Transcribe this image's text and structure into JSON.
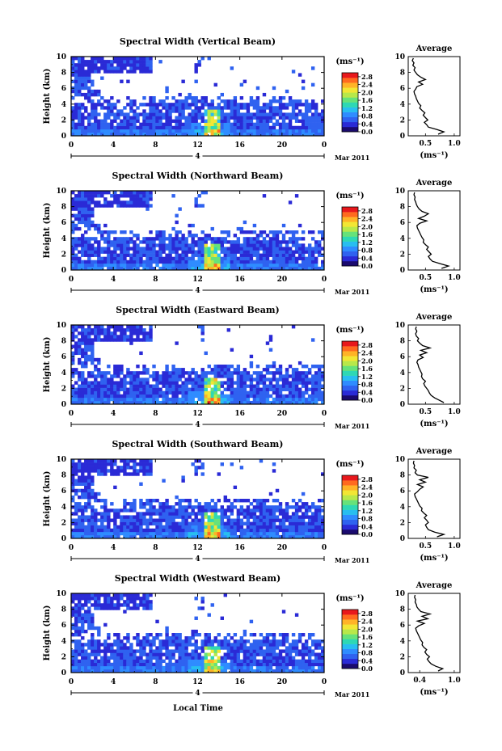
{
  "figure": {
    "date_label": "Mar 2011",
    "day_label": "4",
    "xlabel": "Local Time",
    "colorbar_unit": "(ms⁻¹)",
    "avg_title": "Average",
    "avg_unit": "(ms⁻¹)",
    "colormap": [
      "#1a0a6e",
      "#2a2ad6",
      "#2f62f0",
      "#2f8cff",
      "#28bef0",
      "#2ed8b4",
      "#66e27a",
      "#b8e84a",
      "#f2e634",
      "#ffb327",
      "#ff6a1f",
      "#e8181c"
    ]
  },
  "chart_data": [
    {
      "type": "heatmap",
      "title": "Spectral Width (Vertical Beam)",
      "ylabel": "Height (km)",
      "x_ticks": [
        "0",
        "4",
        "8",
        "12",
        "16",
        "20",
        "0"
      ],
      "xlim": [
        0,
        24
      ],
      "y_ticks": [
        "0",
        "2",
        "4",
        "6",
        "8",
        "10"
      ],
      "ylim": [
        0,
        10
      ],
      "colorbar_ticks": [
        "0.0",
        "0.4",
        "0.8",
        "1.2",
        "1.6",
        "2.0",
        "2.4",
        "2.8"
      ],
      "colorbar_range": [
        0,
        3.0
      ],
      "average_profile": {
        "title": "Average",
        "x_ticks": [
          "0.5",
          "1.0"
        ],
        "y_ticks": [
          "0",
          "2",
          "4",
          "6",
          "8",
          "10"
        ],
        "xlim": [
          0.2,
          1.1
        ],
        "ylim": [
          0,
          10
        ],
        "height": [
          0.2,
          0.5,
          0.8,
          1.1,
          1.4,
          1.7,
          2.0,
          2.3,
          2.6,
          2.9,
          3.2,
          3.5,
          3.8,
          4.1,
          4.4,
          4.7,
          5.0,
          5.3,
          5.6,
          5.9,
          6.2,
          6.5,
          6.8,
          7.1,
          7.4,
          7.7,
          8.0,
          8.3,
          8.6,
          8.9,
          9.2,
          9.5,
          9.8
        ],
        "width": [
          0.72,
          0.82,
          0.7,
          0.55,
          0.52,
          0.48,
          0.54,
          0.5,
          0.46,
          0.49,
          0.44,
          0.4,
          0.42,
          0.38,
          0.36,
          0.34,
          0.33,
          0.31,
          0.3,
          0.33,
          0.35,
          0.45,
          0.38,
          0.5,
          0.42,
          0.36,
          0.33,
          0.3,
          0.32,
          0.28,
          0.3,
          0.27,
          0.29
        ]
      }
    },
    {
      "type": "heatmap",
      "title": "Spectral Width (Northward Beam)",
      "ylabel": "Height (km)",
      "x_ticks": [
        "0",
        "4",
        "8",
        "12",
        "16",
        "20",
        "0"
      ],
      "xlim": [
        0,
        24
      ],
      "y_ticks": [
        "0",
        "2",
        "4",
        "6",
        "8",
        "10"
      ],
      "ylim": [
        0,
        10
      ],
      "colorbar_ticks": [
        "0.0",
        "0.4",
        "0.8",
        "1.2",
        "1.6",
        "2.0",
        "2.4",
        "2.8"
      ],
      "colorbar_range": [
        0,
        3.0
      ],
      "average_profile": {
        "title": "Average",
        "x_ticks": [
          "0.5",
          "1.0"
        ],
        "y_ticks": [
          "0",
          "2",
          "4",
          "6",
          "8",
          "10"
        ],
        "xlim": [
          0.2,
          1.1
        ],
        "ylim": [
          0,
          10
        ],
        "height": [
          0.2,
          0.5,
          0.8,
          1.1,
          1.4,
          1.7,
          2.0,
          2.3,
          2.6,
          2.9,
          3.2,
          3.5,
          3.8,
          4.1,
          4.4,
          4.7,
          5.0,
          5.3,
          5.6,
          5.9,
          6.2,
          6.5,
          6.8,
          7.1,
          7.4,
          7.7,
          8.0,
          8.3,
          8.6,
          8.9,
          9.2,
          9.5,
          9.8
        ],
        "width": [
          0.78,
          0.9,
          0.76,
          0.62,
          0.58,
          0.55,
          0.6,
          0.56,
          0.52,
          0.55,
          0.5,
          0.46,
          0.47,
          0.44,
          0.42,
          0.4,
          0.38,
          0.36,
          0.35,
          0.4,
          0.52,
          0.38,
          0.48,
          0.55,
          0.44,
          0.39,
          0.36,
          0.34,
          0.33,
          0.31,
          0.32,
          0.3,
          0.31
        ]
      }
    },
    {
      "type": "heatmap",
      "title": "Spectral Width (Eastward Beam)",
      "ylabel": "Height (km)",
      "x_ticks": [
        "0",
        "4",
        "8",
        "12",
        "16",
        "20",
        "0"
      ],
      "xlim": [
        0,
        24
      ],
      "y_ticks": [
        "0",
        "2",
        "4",
        "6",
        "8",
        "10"
      ],
      "ylim": [
        0,
        10
      ],
      "colorbar_ticks": [
        "0.0",
        "0.4",
        "0.8",
        "1.2",
        "1.6",
        "2.0",
        "2.4",
        "2.8"
      ],
      "colorbar_range": [
        0,
        3.0
      ],
      "average_profile": {
        "title": "Average",
        "x_ticks": [
          "0.5",
          "1.0"
        ],
        "y_ticks": [
          "0",
          "2",
          "4",
          "6",
          "8",
          "10"
        ],
        "xlim": [
          0.2,
          1.1
        ],
        "ylim": [
          0,
          10
        ],
        "height": [
          0.2,
          0.5,
          0.8,
          1.1,
          1.4,
          1.7,
          2.0,
          2.3,
          2.6,
          2.9,
          3.2,
          3.5,
          3.8,
          4.1,
          4.4,
          4.7,
          5.0,
          5.3,
          5.6,
          5.9,
          6.2,
          6.5,
          6.8,
          7.1,
          7.4,
          7.7,
          8.0,
          8.3,
          8.6,
          8.9,
          9.2,
          9.5,
          9.8
        ],
        "width": [
          0.82,
          0.74,
          0.66,
          0.6,
          0.57,
          0.55,
          0.52,
          0.49,
          0.47,
          0.5,
          0.45,
          0.43,
          0.44,
          0.42,
          0.4,
          0.38,
          0.37,
          0.35,
          0.37,
          0.46,
          0.4,
          0.52,
          0.42,
          0.58,
          0.45,
          0.4,
          0.36,
          0.38,
          0.34,
          0.33,
          0.35,
          0.33,
          0.34
        ]
      }
    },
    {
      "type": "heatmap",
      "title": "Spectral Width (Southward Beam)",
      "ylabel": "Height (km)",
      "x_ticks": [
        "0",
        "4",
        "8",
        "12",
        "16",
        "20",
        "0"
      ],
      "xlim": [
        0,
        24
      ],
      "y_ticks": [
        "0",
        "2",
        "4",
        "6",
        "8",
        "10"
      ],
      "ylim": [
        0,
        10
      ],
      "colorbar_ticks": [
        "0.0",
        "0.4",
        "0.8",
        "1.2",
        "1.6",
        "2.0",
        "2.4",
        "2.8"
      ],
      "colorbar_range": [
        0,
        3.0
      ],
      "average_profile": {
        "title": "Average",
        "x_ticks": [
          "0.5",
          "1.0"
        ],
        "y_ticks": [
          "0",
          "2",
          "4",
          "6",
          "8",
          "10"
        ],
        "xlim": [
          0.2,
          1.1
        ],
        "ylim": [
          0,
          10
        ],
        "height": [
          0.2,
          0.5,
          0.8,
          1.1,
          1.4,
          1.7,
          2.0,
          2.3,
          2.6,
          2.9,
          3.2,
          3.5,
          3.8,
          4.1,
          4.4,
          4.7,
          5.0,
          5.3,
          5.6,
          5.9,
          6.2,
          6.5,
          6.8,
          7.1,
          7.4,
          7.7,
          8.0,
          8.3,
          8.6,
          8.9,
          9.2,
          9.5,
          9.8
        ],
        "width": [
          0.7,
          0.82,
          0.66,
          0.55,
          0.52,
          0.5,
          0.55,
          0.52,
          0.48,
          0.52,
          0.47,
          0.43,
          0.44,
          0.4,
          0.38,
          0.36,
          0.34,
          0.32,
          0.31,
          0.36,
          0.4,
          0.46,
          0.36,
          0.5,
          0.4,
          0.55,
          0.36,
          0.32,
          0.34,
          0.3,
          0.31,
          0.29,
          0.3
        ]
      }
    },
    {
      "type": "heatmap",
      "title": "Spectral Width (Westward Beam)",
      "ylabel": "Height (km)",
      "x_ticks": [
        "0",
        "4",
        "8",
        "12",
        "16",
        "20",
        "0"
      ],
      "xlim": [
        0,
        24
      ],
      "y_ticks": [
        "0",
        "2",
        "4",
        "6",
        "8",
        "10"
      ],
      "ylim": [
        0,
        10
      ],
      "colorbar_ticks": [
        "0.0",
        "0.4",
        "0.8",
        "1.2",
        "1.6",
        "2.0",
        "2.4",
        "2.8"
      ],
      "colorbar_range": [
        0,
        3.0
      ],
      "average_profile": {
        "title": "Average",
        "x_ticks": [
          "0.4",
          "1.0"
        ],
        "y_ticks": [
          "0",
          "2",
          "4",
          "6",
          "8",
          "10"
        ],
        "xlim": [
          0.2,
          1.1
        ],
        "ylim": [
          0,
          10
        ],
        "height": [
          0.2,
          0.5,
          0.8,
          1.1,
          1.4,
          1.7,
          2.0,
          2.3,
          2.6,
          2.9,
          3.2,
          3.5,
          3.8,
          4.1,
          4.4,
          4.7,
          5.0,
          5.3,
          5.6,
          5.9,
          6.2,
          6.5,
          6.8,
          7.1,
          7.4,
          7.7,
          8.0,
          8.3,
          8.6,
          8.9,
          9.2,
          9.5,
          9.8
        ],
        "width": [
          0.72,
          0.8,
          0.68,
          0.6,
          0.56,
          0.53,
          0.57,
          0.52,
          0.49,
          0.52,
          0.47,
          0.44,
          0.45,
          0.42,
          0.4,
          0.38,
          0.36,
          0.34,
          0.33,
          0.38,
          0.48,
          0.36,
          0.54,
          0.44,
          0.58,
          0.42,
          0.38,
          0.35,
          0.34,
          0.32,
          0.33,
          0.31,
          0.32
        ]
      }
    }
  ]
}
